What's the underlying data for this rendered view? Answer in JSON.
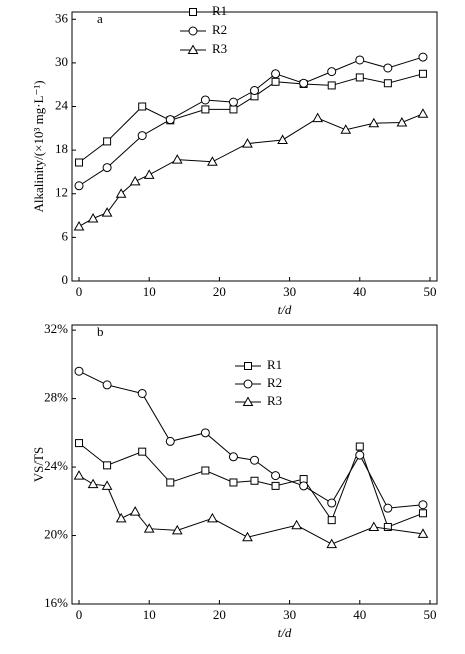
{
  "chart_data": [
    {
      "type": "line",
      "panel_label": "a",
      "y_label": "Alkalinity/(×10³ mg·L⁻¹)",
      "x_label": "t/d",
      "xlim": [
        -1,
        51
      ],
      "xticks": [
        0,
        10,
        20,
        30,
        40,
        50
      ],
      "ylim": [
        0,
        37
      ],
      "yticks": [
        0,
        6,
        12,
        18,
        24,
        30,
        36
      ],
      "series": [
        {
          "name": "R1",
          "color": "#000000",
          "marker": "square",
          "x": [
            0,
            4,
            9,
            13,
            18,
            22,
            25,
            28,
            32,
            36,
            40,
            44,
            49
          ],
          "values": [
            16.3,
            19.2,
            24,
            22.1,
            23.6,
            23.6,
            25.4,
            27.4,
            27.1,
            26.9,
            28,
            27.2,
            28.5
          ]
        },
        {
          "name": "R2",
          "color": "#000000",
          "marker": "circle",
          "x": [
            0,
            4,
            9,
            13,
            18,
            22,
            25,
            28,
            32,
            36,
            40,
            44,
            49
          ],
          "values": [
            13.1,
            15.6,
            20,
            22.2,
            24.9,
            24.6,
            26.2,
            28.5,
            27.2,
            28.8,
            30.4,
            29.3,
            30.8
          ]
        },
        {
          "name": "R3",
          "color": "#000000",
          "marker": "triangle",
          "x": [
            0,
            2,
            4,
            6,
            8,
            10,
            14,
            19,
            24,
            29,
            34,
            38,
            42,
            46,
            49
          ],
          "values": [
            7.5,
            8.6,
            9.4,
            12,
            13.7,
            14.6,
            16.7,
            16.4,
            18.9,
            19.4,
            22.4,
            20.8,
            21.7,
            21.8,
            23
          ]
        }
      ]
    },
    {
      "type": "line",
      "panel_label": "b",
      "y_label": "VS/TS",
      "x_label": "t/d",
      "xlim": [
        -1,
        51
      ],
      "xticks": [
        0,
        10,
        20,
        30,
        40,
        50
      ],
      "ylim": [
        16,
        32.3
      ],
      "yticks": [
        {
          "value": 16,
          "label": "16%"
        },
        {
          "value": 20,
          "label": "20%"
        },
        {
          "value": 24,
          "label": "24%"
        },
        {
          "value": 28,
          "label": "28%"
        },
        {
          "value": 32,
          "label": "32%"
        }
      ],
      "series": [
        {
          "name": "R1",
          "color": "#000000",
          "marker": "square",
          "x": [
            0,
            4,
            9,
            13,
            18,
            22,
            25,
            28,
            32,
            36,
            40,
            44,
            49
          ],
          "values": [
            25.4,
            24.1,
            24.9,
            23.1,
            23.8,
            23.1,
            23.2,
            22.9,
            23.3,
            20.9,
            25.2,
            20.5,
            21.3
          ]
        },
        {
          "name": "R2",
          "color": "#000000",
          "marker": "circle",
          "x": [
            0,
            4,
            9,
            13,
            18,
            22,
            25,
            28,
            32,
            36,
            40,
            44,
            49
          ],
          "values": [
            29.6,
            28.8,
            28.3,
            25.5,
            26,
            24.6,
            24.4,
            23.5,
            22.9,
            21.9,
            24.7,
            21.6,
            21.8
          ]
        },
        {
          "name": "R3",
          "color": "#000000",
          "marker": "triangle",
          "x": [
            0,
            2,
            4,
            6,
            8,
            10,
            14,
            19,
            24,
            31,
            36,
            42,
            49
          ],
          "values": [
            23.5,
            23,
            22.9,
            21,
            21.4,
            20.4,
            20.3,
            21,
            19.9,
            20.6,
            19.5,
            20.5,
            20.1
          ]
        }
      ]
    }
  ]
}
